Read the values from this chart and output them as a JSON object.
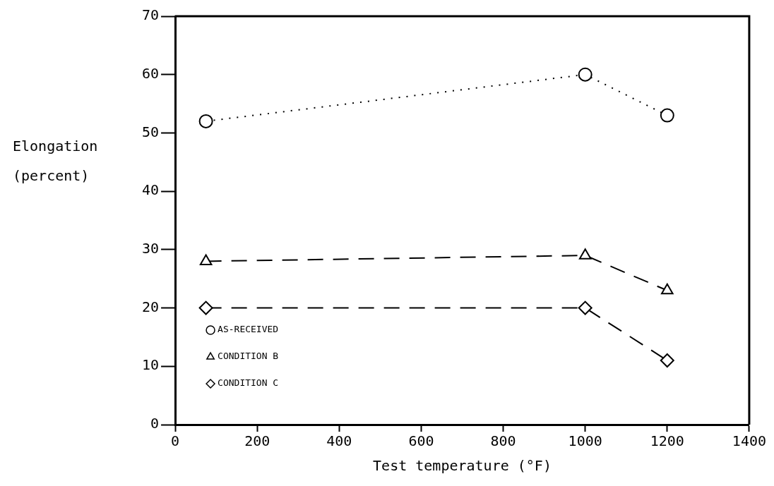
{
  "chart_data": {
    "type": "line",
    "xlabel": "Test temperature (°F)",
    "ylabel": "Elongation (percent)",
    "xlim": [
      0,
      1400
    ],
    "xticks": [
      0,
      200,
      400,
      600,
      800,
      1000,
      1200,
      1400
    ],
    "ylim": [
      0,
      70
    ],
    "yticks": [
      0,
      10,
      20,
      30,
      40,
      50,
      60,
      70
    ],
    "grid": false,
    "legend": "bottom left",
    "series": [
      {
        "name": "AS-RECEIVED",
        "color": "#000000",
        "x": [
          75,
          1000,
          1200
        ],
        "values": [
          52,
          60,
          53
        ],
        "marker": "circle",
        "line_style": "dotted"
      },
      {
        "name": "CONDITION B",
        "color": "#000000",
        "x": [
          75,
          1000,
          1200
        ],
        "values": [
          28,
          29,
          23
        ],
        "marker": "triangle",
        "line_style": "dashed"
      },
      {
        "name": "CONDITION C",
        "color": "#000000",
        "x": [
          75,
          1000,
          1200
        ],
        "values": [
          20,
          20,
          11
        ],
        "marker": "diamond",
        "line_style": "dashed"
      }
    ]
  }
}
